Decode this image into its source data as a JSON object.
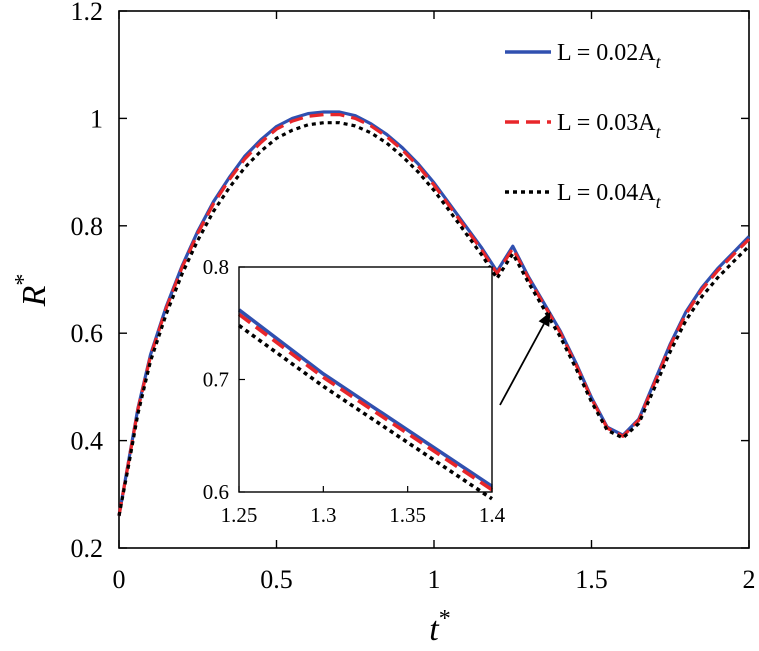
{
  "chart_data": {
    "type": "line",
    "title": "",
    "xlabel": "t",
    "xlabel_sup": "*",
    "ylabel": "R",
    "ylabel_sup": "*",
    "xlim": [
      0,
      2
    ],
    "ylim": [
      0.2,
      1.2
    ],
    "xticks": [
      "0",
      "0.5",
      "1",
      "1.5",
      "2"
    ],
    "yticks": [
      "0.2",
      "0.4",
      "0.6",
      "0.8",
      "1",
      "1.2"
    ],
    "grid": false,
    "legend_position": "top-right",
    "series": [
      {
        "name": "L = 0.02A",
        "name_sub": "t",
        "color": "#3050b0",
        "style": "solid",
        "x": [
          0,
          0.03,
          0.06,
          0.1,
          0.15,
          0.2,
          0.25,
          0.3,
          0.35,
          0.4,
          0.45,
          0.5,
          0.55,
          0.6,
          0.65,
          0.7,
          0.75,
          0.8,
          0.85,
          0.9,
          0.95,
          1.0,
          1.05,
          1.1,
          1.15,
          1.2,
          1.25,
          1.3,
          1.35,
          1.4,
          1.45,
          1.5,
          1.55,
          1.6,
          1.65,
          1.7,
          1.75,
          1.8,
          1.85,
          1.9,
          1.95,
          2.0
        ],
        "y": [
          0.26,
          0.36,
          0.46,
          0.56,
          0.65,
          0.725,
          0.79,
          0.845,
          0.89,
          0.93,
          0.96,
          0.985,
          1.0,
          1.009,
          1.012,
          1.012,
          1.005,
          0.99,
          0.97,
          0.945,
          0.915,
          0.88,
          0.84,
          0.8,
          0.76,
          0.715,
          0.762,
          0.705,
          0.655,
          0.605,
          0.545,
          0.48,
          0.425,
          0.41,
          0.44,
          0.51,
          0.58,
          0.64,
          0.685,
          0.72,
          0.75,
          0.78
        ]
      },
      {
        "name": "L = 0.03A",
        "name_sub": "t",
        "color": "#e8262a",
        "style": "dashed",
        "x": [
          0,
          0.03,
          0.06,
          0.1,
          0.15,
          0.2,
          0.25,
          0.3,
          0.35,
          0.4,
          0.45,
          0.5,
          0.55,
          0.6,
          0.65,
          0.7,
          0.75,
          0.8,
          0.85,
          0.9,
          0.95,
          1.0,
          1.05,
          1.1,
          1.15,
          1.2,
          1.25,
          1.3,
          1.35,
          1.4,
          1.45,
          1.5,
          1.55,
          1.6,
          1.65,
          1.7,
          1.75,
          1.8,
          1.85,
          1.9,
          1.95,
          2.0
        ],
        "y": [
          0.26,
          0.358,
          0.458,
          0.557,
          0.647,
          0.722,
          0.786,
          0.841,
          0.886,
          0.925,
          0.955,
          0.98,
          0.995,
          1.004,
          1.007,
          1.007,
          1.0,
          0.986,
          0.966,
          0.941,
          0.911,
          0.876,
          0.836,
          0.796,
          0.756,
          0.711,
          0.758,
          0.702,
          0.652,
          0.602,
          0.542,
          0.478,
          0.423,
          0.408,
          0.438,
          0.507,
          0.577,
          0.636,
          0.681,
          0.716,
          0.746,
          0.775
        ]
      },
      {
        "name": "L = 0.04A",
        "name_sub": "t",
        "color": "#000000",
        "style": "dotted",
        "x": [
          0,
          0.03,
          0.06,
          0.1,
          0.15,
          0.2,
          0.25,
          0.3,
          0.35,
          0.4,
          0.45,
          0.5,
          0.55,
          0.6,
          0.65,
          0.7,
          0.75,
          0.8,
          0.85,
          0.9,
          0.95,
          1.0,
          1.05,
          1.1,
          1.15,
          1.2,
          1.25,
          1.3,
          1.35,
          1.4,
          1.45,
          1.5,
          1.55,
          1.6,
          1.65,
          1.7,
          1.75,
          1.8,
          1.85,
          1.9,
          1.95,
          2.0
        ],
        "y": [
          0.26,
          0.352,
          0.45,
          0.548,
          0.636,
          0.71,
          0.773,
          0.827,
          0.871,
          0.909,
          0.939,
          0.963,
          0.978,
          0.988,
          0.992,
          0.992,
          0.986,
          0.973,
          0.954,
          0.929,
          0.9,
          0.866,
          0.827,
          0.787,
          0.747,
          0.702,
          0.748,
          0.694,
          0.644,
          0.594,
          0.535,
          0.472,
          0.419,
          0.405,
          0.432,
          0.498,
          0.566,
          0.624,
          0.668,
          0.703,
          0.733,
          0.762
        ]
      }
    ],
    "inset": {
      "xlim": [
        1.25,
        1.4
      ],
      "ylim": [
        0.6,
        0.8
      ],
      "xticks": [
        "1.25",
        "1.3",
        "1.35",
        "1.4"
      ],
      "yticks": [
        "0.6",
        "0.7",
        "0.8"
      ],
      "series": [
        {
          "x": [
            1.25,
            1.3,
            1.35,
            1.4
          ],
          "y": [
            0.762,
            0.705,
            0.655,
            0.605
          ]
        },
        {
          "x": [
            1.25,
            1.3,
            1.35,
            1.4
          ],
          "y": [
            0.758,
            0.702,
            0.652,
            0.602
          ]
        },
        {
          "x": [
            1.25,
            1.3,
            1.35,
            1.4
          ],
          "y": [
            0.748,
            0.694,
            0.644,
            0.594
          ]
        }
      ],
      "arrow_target": {
        "x": 1.37,
        "y": 0.64
      }
    }
  }
}
